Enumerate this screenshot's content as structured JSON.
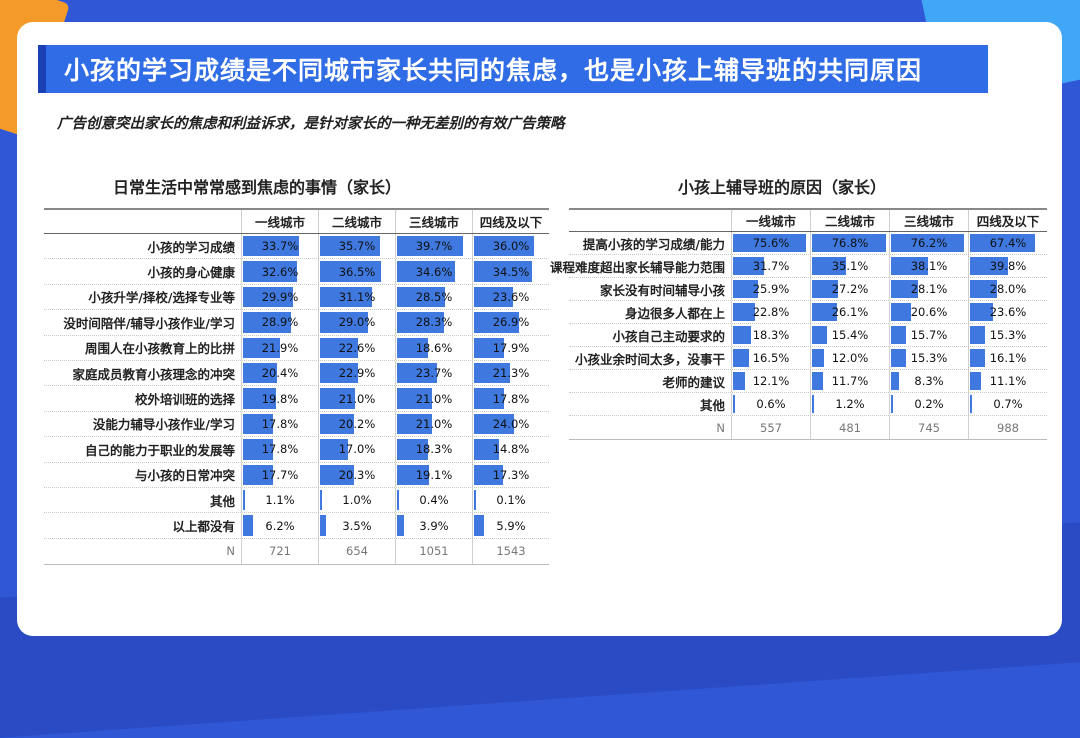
{
  "page": {
    "title": "小孩的学习成绩是不同城市家长共同的焦虑，也是小孩上辅导班的共同原因",
    "subtitle": "广告创意突出家长的焦虑和利益诉求，是针对家长的一种无差别的有效广告策略"
  },
  "colors": {
    "bar": "#3f78de",
    "title_bar": "#2f6ce5",
    "background": "#2f57d6"
  },
  "chart_data": [
    {
      "type": "table",
      "title": "日常生活中常常感到焦虑的事情（家长）",
      "columns": [
        "一线城市",
        "二线城市",
        "三线城市",
        "四线及以下"
      ],
      "rows": [
        {
          "label": "小孩的学习成绩",
          "values": [
            33.7,
            35.7,
            39.7,
            36.0
          ]
        },
        {
          "label": "小孩的身心健康",
          "values": [
            32.6,
            36.5,
            34.6,
            34.5
          ]
        },
        {
          "label": "小孩升学/择校/选择专业等",
          "values": [
            29.9,
            31.1,
            28.5,
            23.6
          ]
        },
        {
          "label": "没时间陪伴/辅导小孩作业/学习",
          "values": [
            28.9,
            29.0,
            28.3,
            26.9
          ]
        },
        {
          "label": "周围人在小孩教育上的比拼",
          "values": [
            21.9,
            22.6,
            18.6,
            17.9
          ]
        },
        {
          "label": "家庭成员教育小孩理念的冲突",
          "values": [
            20.4,
            22.9,
            23.7,
            21.3
          ]
        },
        {
          "label": "校外培训班的选择",
          "values": [
            19.8,
            21.0,
            21.0,
            17.8
          ]
        },
        {
          "label": "没能力辅导小孩作业/学习",
          "values": [
            17.8,
            20.2,
            21.0,
            24.0
          ]
        },
        {
          "label": "自己的能力于职业的发展等",
          "values": [
            17.8,
            17.0,
            18.3,
            14.8
          ]
        },
        {
          "label": "与小孩的日常冲突",
          "values": [
            17.7,
            20.3,
            19.1,
            17.3
          ]
        },
        {
          "label": "其他",
          "values": [
            1.1,
            1.0,
            0.4,
            0.1
          ]
        },
        {
          "label": "以上都没有",
          "values": [
            6.2,
            3.5,
            3.9,
            5.9
          ]
        }
      ],
      "n_label": "N",
      "n": [
        "721",
        "654",
        "1051",
        "1543"
      ],
      "bar_max": 45
    },
    {
      "type": "table",
      "title": "小孩上辅导班的原因（家长）",
      "columns": [
        "一线城市",
        "二线城市",
        "三线城市",
        "四线及以下"
      ],
      "rows": [
        {
          "label": "提高小孩的学习成绩/能力",
          "values": [
            75.6,
            76.8,
            76.2,
            67.4
          ]
        },
        {
          "label": "课程难度超出家长辅导能力范围",
          "values": [
            31.7,
            35.1,
            38.1,
            39.8
          ]
        },
        {
          "label": "家长没有时间辅导小孩",
          "values": [
            25.9,
            27.2,
            28.1,
            28.0
          ]
        },
        {
          "label": "身边很多人都在上",
          "values": [
            22.8,
            26.1,
            20.6,
            23.6
          ]
        },
        {
          "label": "小孩自己主动要求的",
          "values": [
            18.3,
            15.4,
            15.7,
            15.3
          ]
        },
        {
          "label": "小孩业余时间太多，没事干",
          "values": [
            16.5,
            12.0,
            15.3,
            16.1
          ]
        },
        {
          "label": "老师的建议",
          "values": [
            12.1,
            11.7,
            8.3,
            11.1
          ]
        },
        {
          "label": "其他",
          "values": [
            0.6,
            1.2,
            0.2,
            0.7
          ]
        }
      ],
      "n_label": "N",
      "n": [
        "557",
        "481",
        "745",
        "988"
      ],
      "bar_max": 80
    }
  ]
}
